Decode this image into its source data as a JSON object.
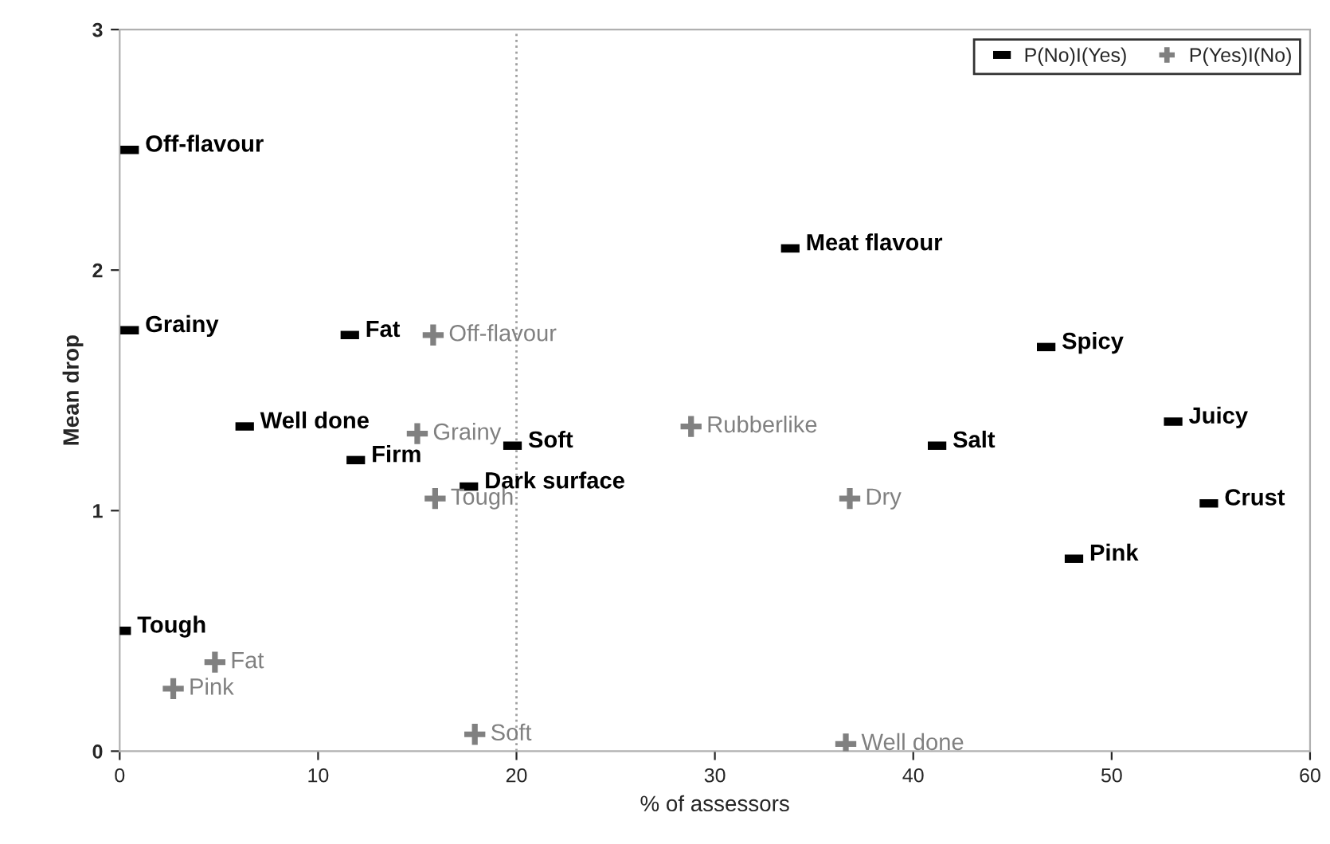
{
  "chart_data": {
    "type": "scatter",
    "xlabel": "% of assessors",
    "ylabel": "Mean drop",
    "xlim": [
      0,
      60
    ],
    "ylim": [
      0,
      3
    ],
    "xticks": [
      0,
      10,
      20,
      30,
      40,
      50,
      60
    ],
    "yticks": [
      0,
      1,
      2,
      3
    ],
    "grid": false,
    "legend": "top right",
    "ref_lines": [
      {
        "axis": "x",
        "value": 20,
        "color": "#a0a0a0",
        "line_style": "dotted"
      }
    ],
    "series": [
      {
        "name": "P(No)I(Yes)",
        "color": "#000000",
        "x": [
          0.5,
          0.5,
          11.6,
          6.3,
          11.9,
          17.6,
          19.8,
          0.1,
          33.8,
          46.7,
          41.2,
          53.1,
          54.9,
          48.1
        ],
        "values": [
          2.5,
          1.75,
          1.73,
          1.35,
          1.21,
          1.1,
          1.27,
          0.5,
          2.09,
          1.68,
          1.27,
          1.37,
          1.03,
          0.8
        ],
        "value_labels": [
          "Off-flavour",
          "Grainy",
          "Fat",
          "Well done",
          "Firm",
          "Dark surface",
          "Soft",
          "Tough",
          "Meat flavour",
          "Spicy",
          "Salt",
          "Juicy",
          "Crust",
          "Pink"
        ]
      },
      {
        "name": "P(Yes)I(No)",
        "color": "#808080",
        "marker": "cross",
        "x": [
          15.8,
          15.0,
          28.8,
          15.9,
          36.8,
          4.8,
          2.7,
          17.9,
          36.6
        ],
        "values": [
          1.73,
          1.32,
          1.35,
          1.05,
          1.05,
          0.37,
          0.26,
          0.07,
          0.03
        ],
        "value_labels": [
          "Off-flavour",
          "Grainy",
          "Rubberlike",
          "Tough",
          "Dry",
          "Fat",
          "Pink",
          "Soft",
          "Well done"
        ]
      }
    ]
  }
}
